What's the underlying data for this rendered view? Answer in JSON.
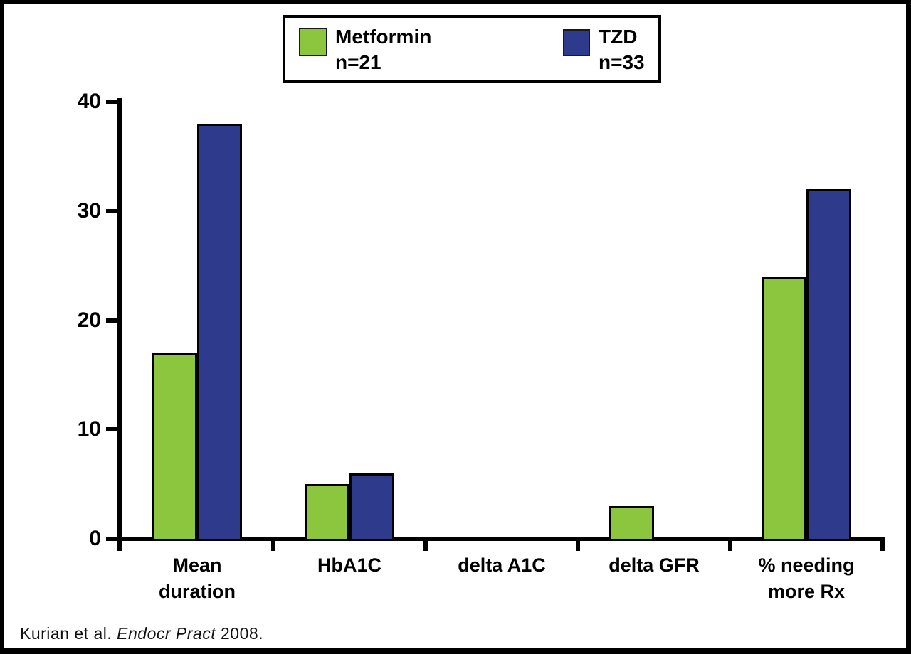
{
  "legend": {
    "items": [
      {
        "key": "metformin",
        "label": "Metformin",
        "sub": "n=21",
        "color": "#8cc63f"
      },
      {
        "key": "tzd",
        "label": "TZD",
        "sub": "n=33",
        "color": "#2e3a8c"
      }
    ]
  },
  "chart_data": {
    "type": "bar",
    "categories": [
      "Mean duration",
      "HbA1C",
      "delta A1C",
      "delta GFR",
      "% needing more Rx"
    ],
    "xtick_labels": [
      "Mean\nduration",
      "HbA1C",
      "delta A1C",
      "delta GFR",
      "% needing\nmore Rx"
    ],
    "series": [
      {
        "name": "Metformin n=21",
        "key": "metformin",
        "color": "#8cc63f",
        "values": [
          17,
          5,
          0,
          3,
          24
        ]
      },
      {
        "name": "TZD n=33",
        "key": "tzd",
        "color": "#2e3a8c",
        "values": [
          38,
          6,
          0,
          0,
          32
        ]
      }
    ],
    "title": "",
    "xlabel": "",
    "ylabel": "",
    "ylim": [
      0,
      40
    ],
    "yticks": [
      0,
      10,
      20,
      30,
      40
    ],
    "grid": false,
    "legend_position": "top"
  },
  "footer": {
    "citation_prefix": "Kurian et al. ",
    "citation_italic": "Endocr Pract",
    "citation_suffix": " 2008."
  }
}
